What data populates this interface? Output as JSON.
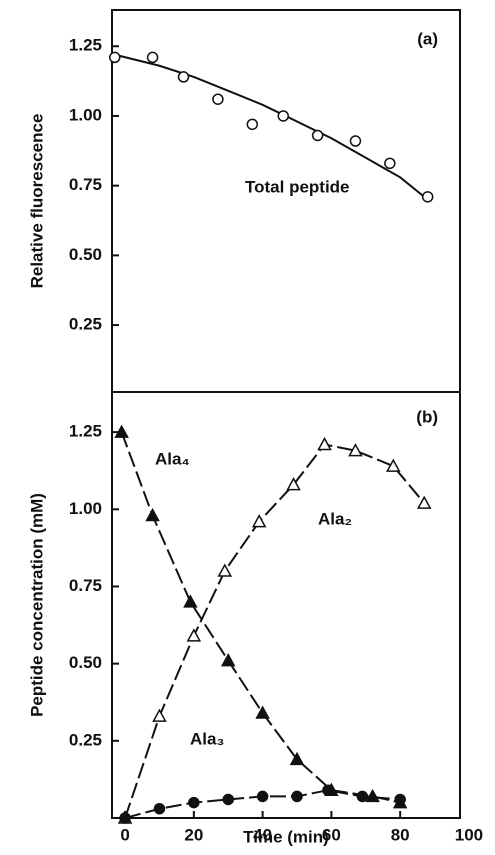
{
  "chart_data": [
    {
      "type": "scatter",
      "label": "(a)",
      "ylabel": "Relative fluorescence",
      "xlim": [
        -3.8,
        97.4
      ],
      "ylim": [
        0.01,
        1.38
      ],
      "yticks": [
        0.25,
        {
          "value": 0.5,
          "label": "0.50"
        },
        0.75,
        {
          "value": 1,
          "label": "1.00"
        },
        1.25
      ],
      "series": [
        {
          "name": "Total peptide",
          "marker": "open-circle",
          "line": "none",
          "x": [
            -3,
            8,
            17,
            27,
            37,
            46,
            56,
            67,
            77,
            88
          ],
          "values": [
            1.21,
            1.21,
            1.14,
            1.06,
            0.97,
            1.0,
            0.93,
            0.91,
            0.83,
            0.71
          ]
        }
      ],
      "fit": {
        "x": [
          -3,
          10,
          20,
          30,
          40,
          50,
          60,
          70,
          80,
          88
        ],
        "values": [
          1.22,
          1.18,
          1.14,
          1.09,
          1.04,
          0.98,
          0.92,
          0.85,
          0.78,
          0.7
        ]
      }
    },
    {
      "type": "scatter",
      "label": "(b)",
      "ylabel": "Peptide concentration (mM)",
      "xlabel": "Time (min)",
      "xlim": [
        -3.8,
        97.4
      ],
      "ylim": [
        0,
        1.38
      ],
      "xticks": [
        0,
        20,
        40,
        60,
        80,
        100
      ],
      "yticks": [
        0.25,
        {
          "value": 0.5,
          "label": "0.50"
        },
        0.75,
        {
          "value": 1,
          "label": "1.00"
        },
        1.25
      ],
      "series": [
        {
          "name": "Ala₄",
          "marker": "filled-triangle",
          "line": "dashed",
          "x": [
            -1,
            8,
            19,
            30,
            40,
            50,
            60,
            72,
            80
          ],
          "values": [
            1.25,
            0.98,
            0.7,
            0.51,
            0.34,
            0.19,
            0.09,
            0.07,
            0.05
          ]
        },
        {
          "name": "Ala₂",
          "marker": "open-triangle",
          "line": "dashed",
          "x": [
            0,
            10,
            20,
            29,
            39,
            49,
            58,
            67,
            78,
            87
          ],
          "values": [
            0,
            0.33,
            0.59,
            0.8,
            0.96,
            1.08,
            1.21,
            1.19,
            1.14,
            1.02
          ]
        },
        {
          "name": "Ala₃",
          "marker": "filled-circle",
          "line": "dashed",
          "x": [
            0,
            10,
            20,
            30,
            40,
            50,
            59,
            69,
            80
          ],
          "values": [
            0,
            0.03,
            0.05,
            0.06,
            0.07,
            0.07,
            0.09,
            0.07,
            0.06
          ]
        }
      ]
    }
  ]
}
